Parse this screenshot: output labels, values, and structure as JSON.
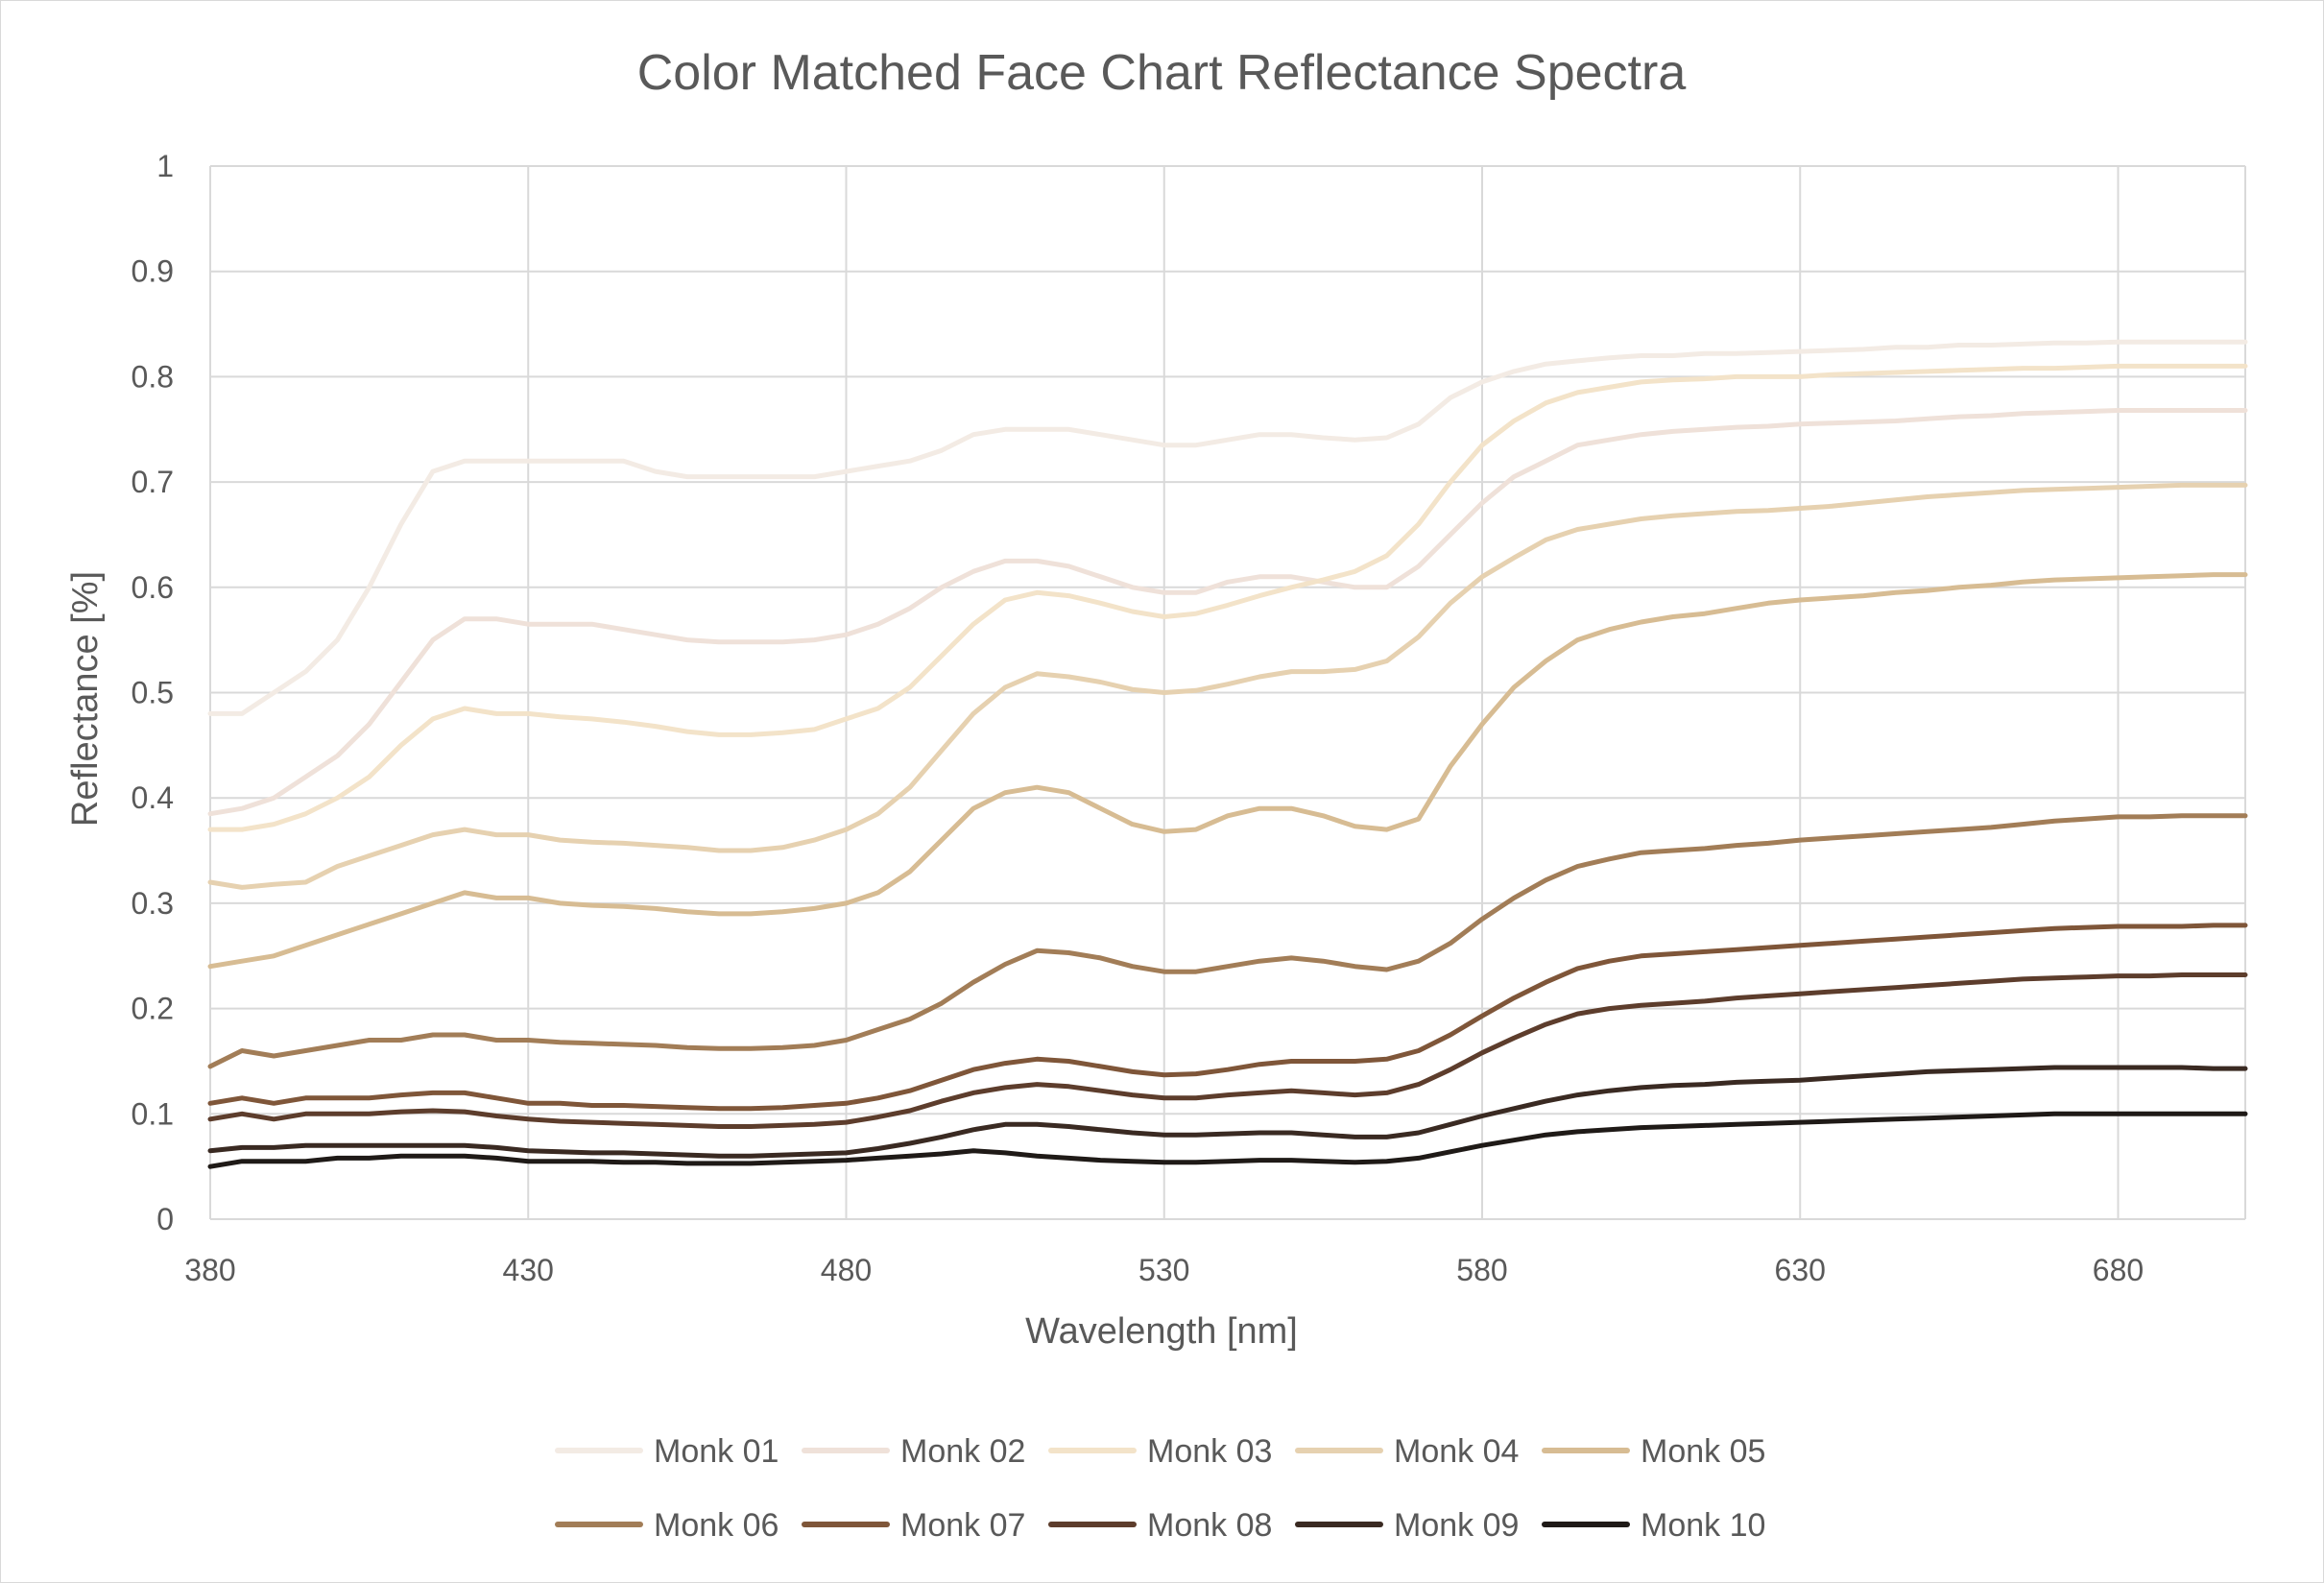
{
  "chart_data": {
    "type": "line",
    "title": "Color Matched Face Chart Reflectance Spectra",
    "xlabel": "Wavelength [nm]",
    "ylabel": "Reflectance [%]",
    "xlim": [
      380,
      700
    ],
    "ylim": [
      0,
      1
    ],
    "x_ticks": [
      380,
      430,
      480,
      530,
      580,
      630,
      680
    ],
    "x_tick_labels": [
      "380",
      "430",
      "480",
      "530",
      "580",
      "630",
      "680"
    ],
    "y_ticks": [
      0,
      0.1,
      0.2,
      0.3,
      0.4,
      0.5,
      0.6,
      0.7,
      0.8,
      0.9,
      1
    ],
    "y_tick_labels": [
      "0",
      "0.1",
      "0.2",
      "0.3",
      "0.4",
      "0.5",
      "0.6",
      "0.7",
      "0.8",
      "0.9",
      "1"
    ],
    "grid": true,
    "legend_position": "bottom",
    "x": [
      380,
      385,
      390,
      395,
      400,
      405,
      410,
      415,
      420,
      425,
      430,
      435,
      440,
      445,
      450,
      455,
      460,
      465,
      470,
      475,
      480,
      485,
      490,
      495,
      500,
      505,
      510,
      515,
      520,
      525,
      530,
      535,
      540,
      545,
      550,
      555,
      560,
      565,
      570,
      575,
      580,
      585,
      590,
      595,
      600,
      605,
      610,
      615,
      620,
      625,
      630,
      635,
      640,
      645,
      650,
      655,
      660,
      665,
      670,
      675,
      680,
      685,
      690,
      695,
      700
    ],
    "series": [
      {
        "name": "Monk 01",
        "color": "#f3ebe4",
        "values": [
          0.48,
          0.48,
          0.5,
          0.52,
          0.55,
          0.6,
          0.66,
          0.71,
          0.72,
          0.72,
          0.72,
          0.72,
          0.72,
          0.72,
          0.71,
          0.705,
          0.705,
          0.705,
          0.705,
          0.705,
          0.71,
          0.715,
          0.72,
          0.73,
          0.745,
          0.75,
          0.75,
          0.75,
          0.745,
          0.74,
          0.735,
          0.735,
          0.74,
          0.745,
          0.745,
          0.742,
          0.74,
          0.742,
          0.755,
          0.78,
          0.795,
          0.805,
          0.812,
          0.815,
          0.818,
          0.82,
          0.82,
          0.822,
          0.822,
          0.823,
          0.824,
          0.825,
          0.826,
          0.828,
          0.828,
          0.83,
          0.83,
          0.831,
          0.832,
          0.832,
          0.833,
          0.833,
          0.833,
          0.833,
          0.833
        ]
      },
      {
        "name": "Monk 02",
        "color": "#efe1d9",
        "values": [
          0.385,
          0.39,
          0.4,
          0.42,
          0.44,
          0.47,
          0.51,
          0.55,
          0.57,
          0.57,
          0.565,
          0.565,
          0.565,
          0.56,
          0.555,
          0.55,
          0.548,
          0.548,
          0.548,
          0.55,
          0.555,
          0.565,
          0.58,
          0.6,
          0.615,
          0.625,
          0.625,
          0.62,
          0.61,
          0.6,
          0.595,
          0.595,
          0.605,
          0.61,
          0.61,
          0.605,
          0.6,
          0.6,
          0.62,
          0.65,
          0.68,
          0.705,
          0.72,
          0.735,
          0.74,
          0.745,
          0.748,
          0.75,
          0.752,
          0.753,
          0.755,
          0.756,
          0.757,
          0.758,
          0.76,
          0.762,
          0.763,
          0.765,
          0.766,
          0.767,
          0.768,
          0.768,
          0.768,
          0.768,
          0.768
        ]
      },
      {
        "name": "Monk 03",
        "color": "#f3e3c9",
        "values": [
          0.37,
          0.37,
          0.375,
          0.385,
          0.4,
          0.42,
          0.45,
          0.475,
          0.485,
          0.48,
          0.48,
          0.477,
          0.475,
          0.472,
          0.468,
          0.463,
          0.46,
          0.46,
          0.462,
          0.465,
          0.475,
          0.485,
          0.505,
          0.535,
          0.565,
          0.588,
          0.595,
          0.592,
          0.585,
          0.577,
          0.572,
          0.575,
          0.583,
          0.592,
          0.6,
          0.607,
          0.615,
          0.63,
          0.66,
          0.7,
          0.735,
          0.758,
          0.775,
          0.785,
          0.79,
          0.795,
          0.797,
          0.798,
          0.8,
          0.8,
          0.8,
          0.802,
          0.803,
          0.804,
          0.805,
          0.806,
          0.807,
          0.808,
          0.808,
          0.809,
          0.81,
          0.81,
          0.81,
          0.81,
          0.81
        ]
      },
      {
        "name": "Monk 04",
        "color": "#e6d1b0",
        "values": [
          0.32,
          0.315,
          0.318,
          0.32,
          0.335,
          0.345,
          0.355,
          0.365,
          0.37,
          0.365,
          0.365,
          0.36,
          0.358,
          0.357,
          0.355,
          0.353,
          0.35,
          0.35,
          0.353,
          0.36,
          0.37,
          0.385,
          0.41,
          0.445,
          0.48,
          0.505,
          0.518,
          0.515,
          0.51,
          0.503,
          0.5,
          0.502,
          0.508,
          0.515,
          0.52,
          0.52,
          0.522,
          0.53,
          0.553,
          0.585,
          0.61,
          0.628,
          0.645,
          0.655,
          0.66,
          0.665,
          0.668,
          0.67,
          0.672,
          0.673,
          0.675,
          0.677,
          0.68,
          0.683,
          0.686,
          0.688,
          0.69,
          0.692,
          0.693,
          0.694,
          0.695,
          0.696,
          0.697,
          0.697,
          0.697
        ]
      },
      {
        "name": "Monk 05",
        "color": "#d7bc93",
        "values": [
          0.24,
          0.245,
          0.25,
          0.26,
          0.27,
          0.28,
          0.29,
          0.3,
          0.31,
          0.305,
          0.305,
          0.3,
          0.298,
          0.297,
          0.295,
          0.292,
          0.29,
          0.29,
          0.292,
          0.295,
          0.3,
          0.31,
          0.33,
          0.36,
          0.39,
          0.405,
          0.41,
          0.405,
          0.39,
          0.375,
          0.368,
          0.37,
          0.383,
          0.39,
          0.39,
          0.383,
          0.373,
          0.37,
          0.38,
          0.43,
          0.47,
          0.505,
          0.53,
          0.55,
          0.56,
          0.567,
          0.572,
          0.575,
          0.58,
          0.585,
          0.588,
          0.59,
          0.592,
          0.595,
          0.597,
          0.6,
          0.602,
          0.605,
          0.607,
          0.608,
          0.609,
          0.61,
          0.611,
          0.612,
          0.612
        ]
      },
      {
        "name": "Monk 06",
        "color": "#a27d57",
        "values": [
          0.145,
          0.16,
          0.155,
          0.16,
          0.165,
          0.17,
          0.17,
          0.175,
          0.175,
          0.17,
          0.17,
          0.168,
          0.167,
          0.166,
          0.165,
          0.163,
          0.162,
          0.162,
          0.163,
          0.165,
          0.17,
          0.18,
          0.19,
          0.205,
          0.225,
          0.242,
          0.255,
          0.253,
          0.248,
          0.24,
          0.235,
          0.235,
          0.24,
          0.245,
          0.248,
          0.245,
          0.24,
          0.237,
          0.245,
          0.262,
          0.285,
          0.305,
          0.322,
          0.335,
          0.342,
          0.348,
          0.35,
          0.352,
          0.355,
          0.357,
          0.36,
          0.362,
          0.364,
          0.366,
          0.368,
          0.37,
          0.372,
          0.375,
          0.378,
          0.38,
          0.382,
          0.382,
          0.383,
          0.383,
          0.383
        ]
      },
      {
        "name": "Monk 07",
        "color": "#7f5639",
        "values": [
          0.11,
          0.115,
          0.11,
          0.115,
          0.115,
          0.115,
          0.118,
          0.12,
          0.12,
          0.115,
          0.11,
          0.11,
          0.108,
          0.108,
          0.107,
          0.106,
          0.105,
          0.105,
          0.106,
          0.108,
          0.11,
          0.115,
          0.122,
          0.132,
          0.142,
          0.148,
          0.152,
          0.15,
          0.145,
          0.14,
          0.137,
          0.138,
          0.142,
          0.147,
          0.15,
          0.15,
          0.15,
          0.152,
          0.16,
          0.175,
          0.193,
          0.21,
          0.225,
          0.238,
          0.245,
          0.25,
          0.252,
          0.254,
          0.256,
          0.258,
          0.26,
          0.262,
          0.264,
          0.266,
          0.268,
          0.27,
          0.272,
          0.274,
          0.276,
          0.277,
          0.278,
          0.278,
          0.278,
          0.279,
          0.279
        ]
      },
      {
        "name": "Monk 08",
        "color": "#5d3d2c",
        "values": [
          0.095,
          0.1,
          0.095,
          0.1,
          0.1,
          0.1,
          0.102,
          0.103,
          0.102,
          0.098,
          0.095,
          0.093,
          0.092,
          0.091,
          0.09,
          0.089,
          0.088,
          0.088,
          0.089,
          0.09,
          0.092,
          0.097,
          0.103,
          0.112,
          0.12,
          0.125,
          0.128,
          0.126,
          0.122,
          0.118,
          0.115,
          0.115,
          0.118,
          0.12,
          0.122,
          0.12,
          0.118,
          0.12,
          0.128,
          0.142,
          0.158,
          0.172,
          0.185,
          0.195,
          0.2,
          0.203,
          0.205,
          0.207,
          0.21,
          0.212,
          0.214,
          0.216,
          0.218,
          0.22,
          0.222,
          0.224,
          0.226,
          0.228,
          0.229,
          0.23,
          0.231,
          0.231,
          0.232,
          0.232,
          0.232
        ]
      },
      {
        "name": "Monk 09",
        "color": "#3a2a22",
        "values": [
          0.065,
          0.068,
          0.068,
          0.07,
          0.07,
          0.07,
          0.07,
          0.07,
          0.07,
          0.068,
          0.065,
          0.064,
          0.063,
          0.063,
          0.062,
          0.061,
          0.06,
          0.06,
          0.061,
          0.062,
          0.063,
          0.067,
          0.072,
          0.078,
          0.085,
          0.09,
          0.09,
          0.088,
          0.085,
          0.082,
          0.08,
          0.08,
          0.081,
          0.082,
          0.082,
          0.08,
          0.078,
          0.078,
          0.082,
          0.09,
          0.098,
          0.105,
          0.112,
          0.118,
          0.122,
          0.125,
          0.127,
          0.128,
          0.13,
          0.131,
          0.132,
          0.134,
          0.136,
          0.138,
          0.14,
          0.141,
          0.142,
          0.143,
          0.144,
          0.144,
          0.144,
          0.144,
          0.144,
          0.143,
          0.143
        ]
      },
      {
        "name": "Monk 10",
        "color": "#1f1a17",
        "values": [
          0.05,
          0.055,
          0.055,
          0.055,
          0.058,
          0.058,
          0.06,
          0.06,
          0.06,
          0.058,
          0.055,
          0.055,
          0.055,
          0.054,
          0.054,
          0.053,
          0.053,
          0.053,
          0.054,
          0.055,
          0.056,
          0.058,
          0.06,
          0.062,
          0.065,
          0.063,
          0.06,
          0.058,
          0.056,
          0.055,
          0.054,
          0.054,
          0.055,
          0.056,
          0.056,
          0.055,
          0.054,
          0.055,
          0.058,
          0.064,
          0.07,
          0.075,
          0.08,
          0.083,
          0.085,
          0.087,
          0.088,
          0.089,
          0.09,
          0.091,
          0.092,
          0.093,
          0.094,
          0.095,
          0.096,
          0.097,
          0.098,
          0.099,
          0.1,
          0.1,
          0.1,
          0.1,
          0.1,
          0.1,
          0.1
        ]
      }
    ]
  }
}
